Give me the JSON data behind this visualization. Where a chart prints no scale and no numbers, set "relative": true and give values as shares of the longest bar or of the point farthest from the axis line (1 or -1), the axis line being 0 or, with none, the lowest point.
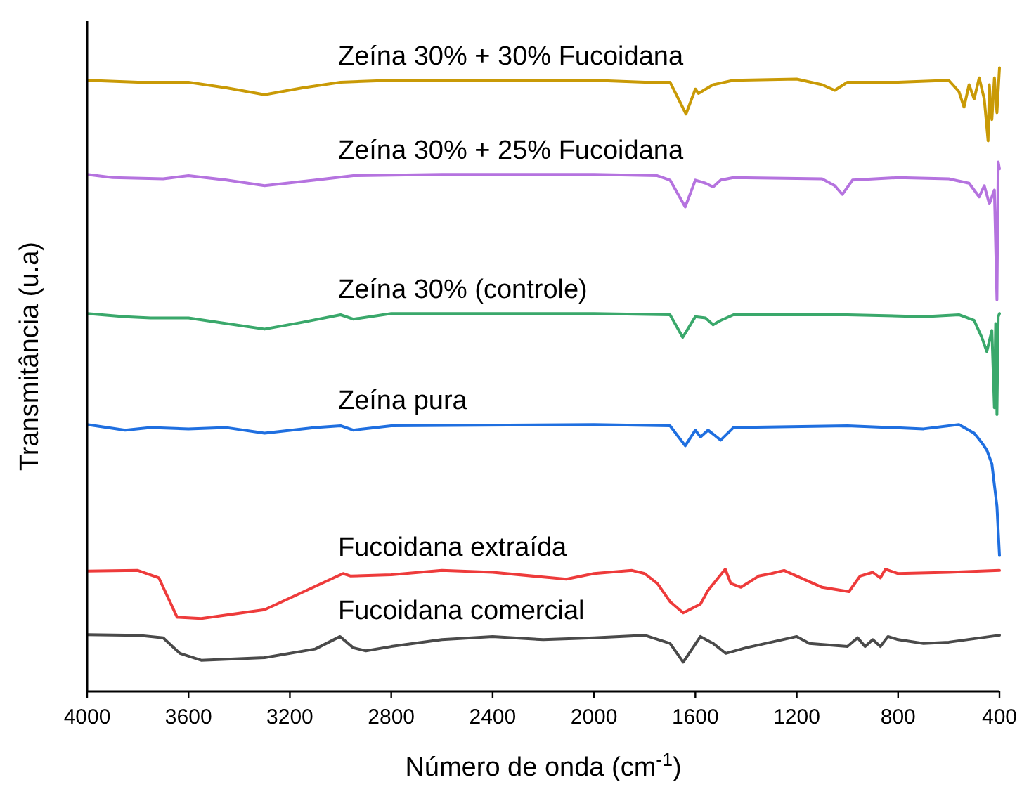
{
  "chart_data": {
    "type": "line",
    "relative": true,
    "xlabel": "Número de onda (cm$^{-1}$)",
    "ylabel": "Transmitância (u.a)",
    "xlim": [
      4000,
      400
    ],
    "xticks": [
      4000,
      3600,
      3200,
      2800,
      2400,
      2000,
      1600,
      1200,
      800,
      400
    ],
    "grid": false,
    "marker": "none",
    "line_style": "solid",
    "series": [
      {
        "name": "Zeína 30% + 30% Fucoidana",
        "color": "#c99a06",
        "x": [
          4000,
          3800,
          3600,
          3450,
          3300,
          3150,
          3000,
          2800,
          2400,
          2000,
          1800,
          1700,
          1637,
          1600,
          1588,
          1530,
          1450,
          1200,
          1100,
          1050,
          1000,
          800,
          600,
          560,
          540,
          520,
          500,
          480,
          460,
          445,
          440,
          430,
          420,
          410,
          400
        ],
        "values": [
          0.98,
          0.977,
          0.977,
          0.968,
          0.957,
          0.968,
          0.977,
          0.98,
          0.98,
          0.98,
          0.977,
          0.977,
          0.926,
          0.966,
          0.959,
          0.973,
          0.98,
          0.982,
          0.973,
          0.964,
          0.977,
          0.977,
          0.98,
          0.962,
          0.937,
          0.973,
          0.95,
          0.984,
          0.95,
          0.883,
          0.973,
          0.917,
          0.984,
          0.928,
          1.0
        ]
      },
      {
        "name": "Zeína 30% + 25% Fucoidana",
        "color": "#b573df",
        "x": [
          4000,
          3900,
          3700,
          3600,
          3450,
          3300,
          3100,
          2950,
          2600,
          2000,
          1750,
          1700,
          1640,
          1600,
          1560,
          1530,
          1500,
          1450,
          1100,
          1050,
          1020,
          980,
          800,
          600,
          520,
          480,
          460,
          440,
          420,
          410,
          405,
          400
        ],
        "values": [
          0.829,
          0.824,
          0.822,
          0.827,
          0.82,
          0.811,
          0.82,
          0.827,
          0.829,
          0.829,
          0.827,
          0.82,
          0.777,
          0.82,
          0.815,
          0.809,
          0.82,
          0.824,
          0.822,
          0.811,
          0.797,
          0.82,
          0.824,
          0.822,
          0.815,
          0.793,
          0.811,
          0.782,
          0.804,
          0.628,
          0.849,
          0.838
        ]
      },
      {
        "name": "Zeína 30% (controle)",
        "color": "#3aa86b",
        "x": [
          4000,
          3850,
          3750,
          3600,
          3450,
          3300,
          3150,
          3000,
          2950,
          2800,
          2000,
          1700,
          1650,
          1600,
          1560,
          1530,
          1500,
          1450,
          1000,
          700,
          560,
          500,
          470,
          450,
          430,
          420,
          415,
          410,
          405,
          400
        ],
        "values": [
          0.606,
          0.601,
          0.599,
          0.599,
          0.59,
          0.581,
          0.592,
          0.604,
          0.597,
          0.606,
          0.606,
          0.604,
          0.568,
          0.601,
          0.599,
          0.588,
          0.595,
          0.604,
          0.604,
          0.601,
          0.604,
          0.595,
          0.568,
          0.545,
          0.579,
          0.455,
          0.59,
          0.444,
          0.601,
          0.606
        ]
      },
      {
        "name": "Zeína pura",
        "color": "#1f6fe0",
        "x": [
          4000,
          3850,
          3750,
          3600,
          3450,
          3300,
          3100,
          3000,
          2950,
          2800,
          2000,
          1700,
          1640,
          1600,
          1580,
          1550,
          1500,
          1450,
          1000,
          700,
          560,
          500,
          470,
          450,
          430,
          420,
          410,
          400
        ],
        "values": [
          0.428,
          0.419,
          0.423,
          0.421,
          0.423,
          0.414,
          0.423,
          0.426,
          0.419,
          0.426,
          0.428,
          0.426,
          0.394,
          0.419,
          0.408,
          0.419,
          0.403,
          0.423,
          0.426,
          0.421,
          0.428,
          0.414,
          0.399,
          0.387,
          0.365,
          0.331,
          0.297,
          0.218
        ]
      },
      {
        "name": "Fucoidana extraída",
        "color": "#ee3b3b",
        "x": [
          4000,
          3800,
          3717,
          3645,
          3550,
          3300,
          2990,
          2960,
          2800,
          2600,
          2400,
          2109,
          2000,
          1850,
          1800,
          1750,
          1700,
          1648,
          1580,
          1550,
          1482,
          1460,
          1420,
          1350,
          1300,
          1250,
          1200,
          1100,
          994,
          950,
          900,
          870,
          850,
          800,
          600,
          400
        ],
        "values": [
          0.193,
          0.194,
          0.182,
          0.119,
          0.117,
          0.131,
          0.189,
          0.185,
          0.187,
          0.194,
          0.191,
          0.18,
          0.189,
          0.194,
          0.189,
          0.173,
          0.144,
          0.126,
          0.14,
          0.162,
          0.196,
          0.173,
          0.167,
          0.185,
          0.189,
          0.194,
          0.185,
          0.167,
          0.16,
          0.185,
          0.191,
          0.182,
          0.196,
          0.189,
          0.191,
          0.194
        ]
      },
      {
        "name": "Fucoidana comercial",
        "color": "#4a4a4a",
        "x": [
          4000,
          3800,
          3700,
          3634,
          3550,
          3300,
          3100,
          3002,
          2950,
          2900,
          2800,
          2600,
          2400,
          2200,
          2000,
          1800,
          1700,
          1648,
          1580,
          1530,
          1480,
          1400,
          1300,
          1200,
          1150,
          1000,
          960,
          930,
          900,
          870,
          840,
          800,
          700,
          600,
          400
        ],
        "values": [
          0.091,
          0.09,
          0.086,
          0.061,
          0.05,
          0.054,
          0.068,
          0.088,
          0.07,
          0.065,
          0.072,
          0.083,
          0.088,
          0.083,
          0.086,
          0.09,
          0.077,
          0.047,
          0.088,
          0.077,
          0.061,
          0.07,
          0.079,
          0.088,
          0.077,
          0.072,
          0.086,
          0.072,
          0.083,
          0.072,
          0.088,
          0.083,
          0.077,
          0.079,
          0.09
        ]
      }
    ]
  }
}
